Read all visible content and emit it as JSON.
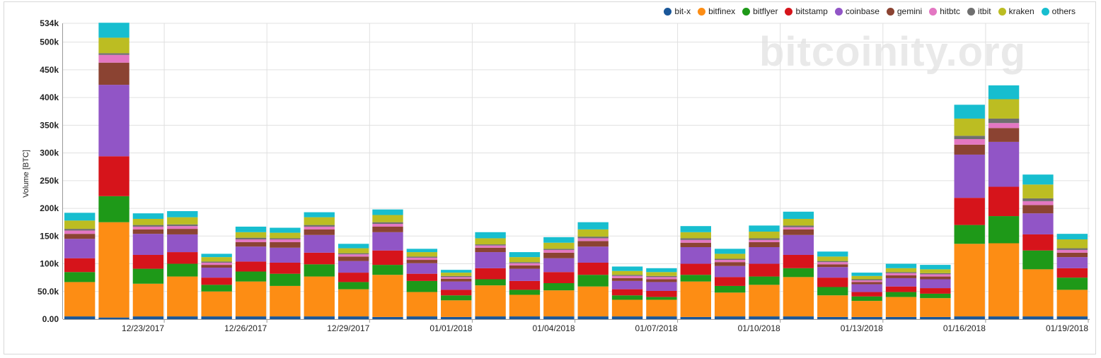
{
  "chart_data": {
    "type": "bar",
    "stacked": true,
    "watermark": "bitcoinity.org",
    "ylabel": "Volume [BTC]",
    "ylim": [
      0,
      534000
    ],
    "yticks": [
      0,
      50000,
      100000,
      150000,
      200000,
      250000,
      300000,
      350000,
      400000,
      450000,
      500000,
      534000
    ],
    "ytick_labels": [
      "0.00",
      "50.0k",
      "100k",
      "150k",
      "200k",
      "250k",
      "300k",
      "350k",
      "400k",
      "450k",
      "500k",
      "534k"
    ],
    "grid": "horizontal",
    "legend_position": "top-right",
    "categories": [
      "12/21/2017",
      "12/22/2017",
      "12/23/2017",
      "12/24/2017",
      "12/25/2017",
      "12/26/2017",
      "12/27/2017",
      "12/28/2017",
      "12/29/2017",
      "12/30/2017",
      "12/31/2017",
      "01/01/2018",
      "01/02/2018",
      "01/03/2018",
      "01/04/2018",
      "01/05/2018",
      "01/06/2018",
      "01/07/2018",
      "01/08/2018",
      "01/09/2018",
      "01/10/2018",
      "01/11/2018",
      "01/12/2018",
      "01/13/2018",
      "01/14/2018",
      "01/15/2018",
      "01/16/2018",
      "01/17/2018",
      "01/18/2018",
      "01/19/2018"
    ],
    "xtick_labels": [
      {
        "index": 2,
        "label": "12/23/2017"
      },
      {
        "index": 5,
        "label": "12/26/2017"
      },
      {
        "index": 8,
        "label": "12/29/2017"
      },
      {
        "index": 11,
        "label": "01/01/2018"
      },
      {
        "index": 14,
        "label": "01/04/2018"
      },
      {
        "index": 17,
        "label": "01/07/2018"
      },
      {
        "index": 20,
        "label": "01/10/2018"
      },
      {
        "index": 23,
        "label": "01/13/2018"
      },
      {
        "index": 26,
        "label": "01/16/2018"
      },
      {
        "index": 29,
        "label": "01/19/2018"
      }
    ],
    "series": [
      {
        "name": "bit-x",
        "color": "#1a5799",
        "values": [
          5000,
          3000,
          5000,
          5000,
          5000,
          5000,
          5000,
          5000,
          5000,
          4000,
          5000,
          4000,
          5000,
          5000,
          5000,
          5000,
          5000,
          5000,
          4000,
          5000,
          5000,
          5000,
          4000,
          4000,
          4000,
          4000,
          5000,
          5000,
          5000,
          5000
        ]
      },
      {
        "name": "bitfinex",
        "color": "#fd8d14",
        "values": [
          62000,
          172000,
          59000,
          72000,
          45000,
          63000,
          55000,
          72000,
          49000,
          76000,
          44000,
          30000,
          56000,
          39000,
          47000,
          54000,
          30000,
          30000,
          64000,
          43000,
          57000,
          71000,
          39000,
          29000,
          36000,
          34000,
          131000,
          132000,
          85000,
          48000
        ]
      },
      {
        "name": "bitflyer",
        "color": "#1e9918",
        "values": [
          18000,
          47000,
          27000,
          23000,
          12000,
          18000,
          22000,
          22000,
          13000,
          18000,
          20000,
          9000,
          11000,
          9000,
          13000,
          21000,
          8000,
          5000,
          12000,
          12000,
          15000,
          16000,
          15000,
          8000,
          9000,
          8000,
          34000,
          49000,
          34000,
          22000
        ]
      },
      {
        "name": "bitstamp",
        "color": "#d6141b",
        "values": [
          25000,
          72000,
          25000,
          21000,
          13000,
          18000,
          20000,
          21000,
          17000,
          26000,
          13000,
          10000,
          20000,
          16000,
          20000,
          22000,
          11000,
          11000,
          20000,
          16000,
          23000,
          24000,
          17000,
          8000,
          10000,
          10000,
          49000,
          53000,
          29000,
          17000
        ]
      },
      {
        "name": "coinbase",
        "color": "#9155c6",
        "values": [
          35000,
          129000,
          38000,
          32000,
          18000,
          27000,
          27000,
          32000,
          21000,
          33000,
          19000,
          15000,
          29000,
          22000,
          25000,
          29000,
          15000,
          16000,
          30000,
          20000,
          30000,
          36000,
          19000,
          14000,
          15000,
          16000,
          78000,
          81000,
          38000,
          20000
        ]
      },
      {
        "name": "gemini",
        "color": "#8b4332",
        "values": [
          9000,
          40000,
          8000,
          10000,
          5000,
          8000,
          10000,
          10000,
          8000,
          10000,
          6000,
          5000,
          8000,
          6000,
          10000,
          10000,
          5000,
          5000,
          8000,
          7000,
          9000,
          10000,
          5000,
          4000,
          5000,
          5000,
          18000,
          25000,
          15000,
          8000
        ]
      },
      {
        "name": "hitbtc",
        "color": "#e377c2",
        "values": [
          6000,
          14000,
          5000,
          5000,
          4000,
          5000,
          5000,
          5000,
          4000,
          5000,
          4000,
          3000,
          4000,
          4000,
          5000,
          5000,
          4000,
          4000,
          5000,
          4000,
          4000,
          4000,
          4000,
          3000,
          4000,
          4000,
          10000,
          9000,
          7000,
          5000
        ]
      },
      {
        "name": "itbit",
        "color": "#6f6f6f",
        "values": [
          3000,
          3000,
          3000,
          3000,
          2000,
          3000,
          2000,
          3000,
          2000,
          3000,
          2000,
          2000,
          2000,
          2000,
          2000,
          3000,
          2000,
          2000,
          3000,
          2000,
          3000,
          3000,
          2000,
          2000,
          2000,
          2000,
          6000,
          8000,
          5000,
          3000
        ]
      },
      {
        "name": "kraken",
        "color": "#bcbd22",
        "values": [
          15000,
          28000,
          11000,
          13000,
          8000,
          10000,
          10000,
          14000,
          9000,
          13000,
          8000,
          6000,
          11000,
          9000,
          11000,
          13000,
          7000,
          7000,
          11000,
          9000,
          12000,
          12000,
          8000,
          6000,
          7000,
          7000,
          31000,
          35000,
          25000,
          16000
        ]
      },
      {
        "name": "others",
        "color": "#17becf",
        "values": [
          14000,
          27000,
          10000,
          11000,
          6000,
          10000,
          9000,
          9000,
          8000,
          10000,
          6000,
          5000,
          11000,
          9000,
          10000,
          13000,
          8000,
          7000,
          11000,
          9000,
          11000,
          13000,
          9000,
          6000,
          8000,
          8000,
          25000,
          25000,
          18000,
          10000
        ]
      }
    ]
  },
  "legend": {
    "items": [
      {
        "label": "bit-x",
        "color": "#1a5799"
      },
      {
        "label": "bitfinex",
        "color": "#fd8d14"
      },
      {
        "label": "bitflyer",
        "color": "#1e9918"
      },
      {
        "label": "bitstamp",
        "color": "#d6141b"
      },
      {
        "label": "coinbase",
        "color": "#9155c6"
      },
      {
        "label": "gemini",
        "color": "#8b4332"
      },
      {
        "label": "hitbtc",
        "color": "#e377c2"
      },
      {
        "label": "itbit",
        "color": "#6f6f6f"
      },
      {
        "label": "kraken",
        "color": "#bcbd22"
      },
      {
        "label": "others",
        "color": "#17becf"
      }
    ]
  }
}
